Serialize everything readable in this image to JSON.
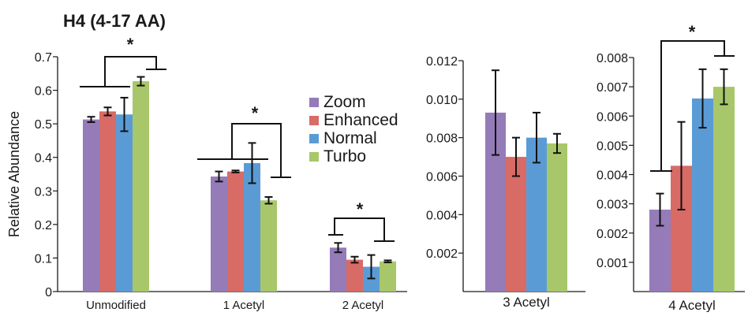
{
  "title": "H4 (4-17 AA)",
  "colors": {
    "Zoom": "#957bb8",
    "Enhanced": "#d86b66",
    "Normal": "#5b9bd5",
    "Turbo": "#a8c76a"
  },
  "legend": [
    "Zoom",
    "Enhanced",
    "Normal",
    "Turbo"
  ],
  "chart_data": [
    {
      "type": "bar",
      "ylabel": "Relative Abundance",
      "ylim": [
        0,
        0.7
      ],
      "yticks": [
        "0",
        "0.1",
        "0.2",
        "0.3",
        "0.4",
        "0.5",
        "0.6",
        "0.7"
      ],
      "categories": [
        "Unmodified",
        "1 Acetyl",
        "2 Acetyl"
      ],
      "series": [
        {
          "name": "Zoom",
          "values": [
            0.513,
            0.343,
            0.131
          ],
          "errors": [
            0.008,
            0.015,
            0.014
          ]
        },
        {
          "name": "Enhanced",
          "values": [
            0.537,
            0.358,
            0.095
          ],
          "errors": [
            0.012,
            0.003,
            0.009
          ]
        },
        {
          "name": "Normal",
          "values": [
            0.528,
            0.383,
            0.074
          ],
          "errors": [
            0.05,
            0.06,
            0.035
          ]
        },
        {
          "name": "Turbo",
          "values": [
            0.627,
            0.272,
            0.09
          ],
          "errors": [
            0.013,
            0.01,
            0.003
          ]
        }
      ],
      "annotations": [
        "*",
        "*",
        "*"
      ]
    },
    {
      "type": "bar",
      "ylabel": "",
      "ylim": [
        0,
        0.012
      ],
      "yticks": [
        "0.002",
        "0.004",
        "0.006",
        "0.008",
        "0.010",
        "0.012"
      ],
      "categories": [
        "3 Acetyl"
      ],
      "series": [
        {
          "name": "Zoom",
          "values": [
            0.0093
          ],
          "errors": [
            0.0022
          ]
        },
        {
          "name": "Enhanced",
          "values": [
            0.007
          ],
          "errors": [
            0.001
          ]
        },
        {
          "name": "Normal",
          "values": [
            0.008
          ],
          "errors": [
            0.0013
          ]
        },
        {
          "name": "Turbo",
          "values": [
            0.0077
          ],
          "errors": [
            0.0005
          ]
        }
      ]
    },
    {
      "type": "bar",
      "ylabel": "",
      "ylim": [
        0,
        0.008
      ],
      "yticks": [
        "0.001",
        "0.002",
        "0.003",
        "0.004",
        "0.005",
        "0.006",
        "0.007",
        "0.008"
      ],
      "categories": [
        "4 Acetyl"
      ],
      "series": [
        {
          "name": "Zoom",
          "values": [
            0.0028
          ],
          "errors": [
            0.00055
          ]
        },
        {
          "name": "Enhanced",
          "values": [
            0.0043
          ],
          "errors": [
            0.0015
          ]
        },
        {
          "name": "Normal",
          "values": [
            0.0066
          ],
          "errors": [
            0.001
          ]
        },
        {
          "name": "Turbo",
          "values": [
            0.007
          ],
          "errors": [
            0.0006
          ]
        }
      ],
      "annotations": [
        "*"
      ]
    }
  ]
}
